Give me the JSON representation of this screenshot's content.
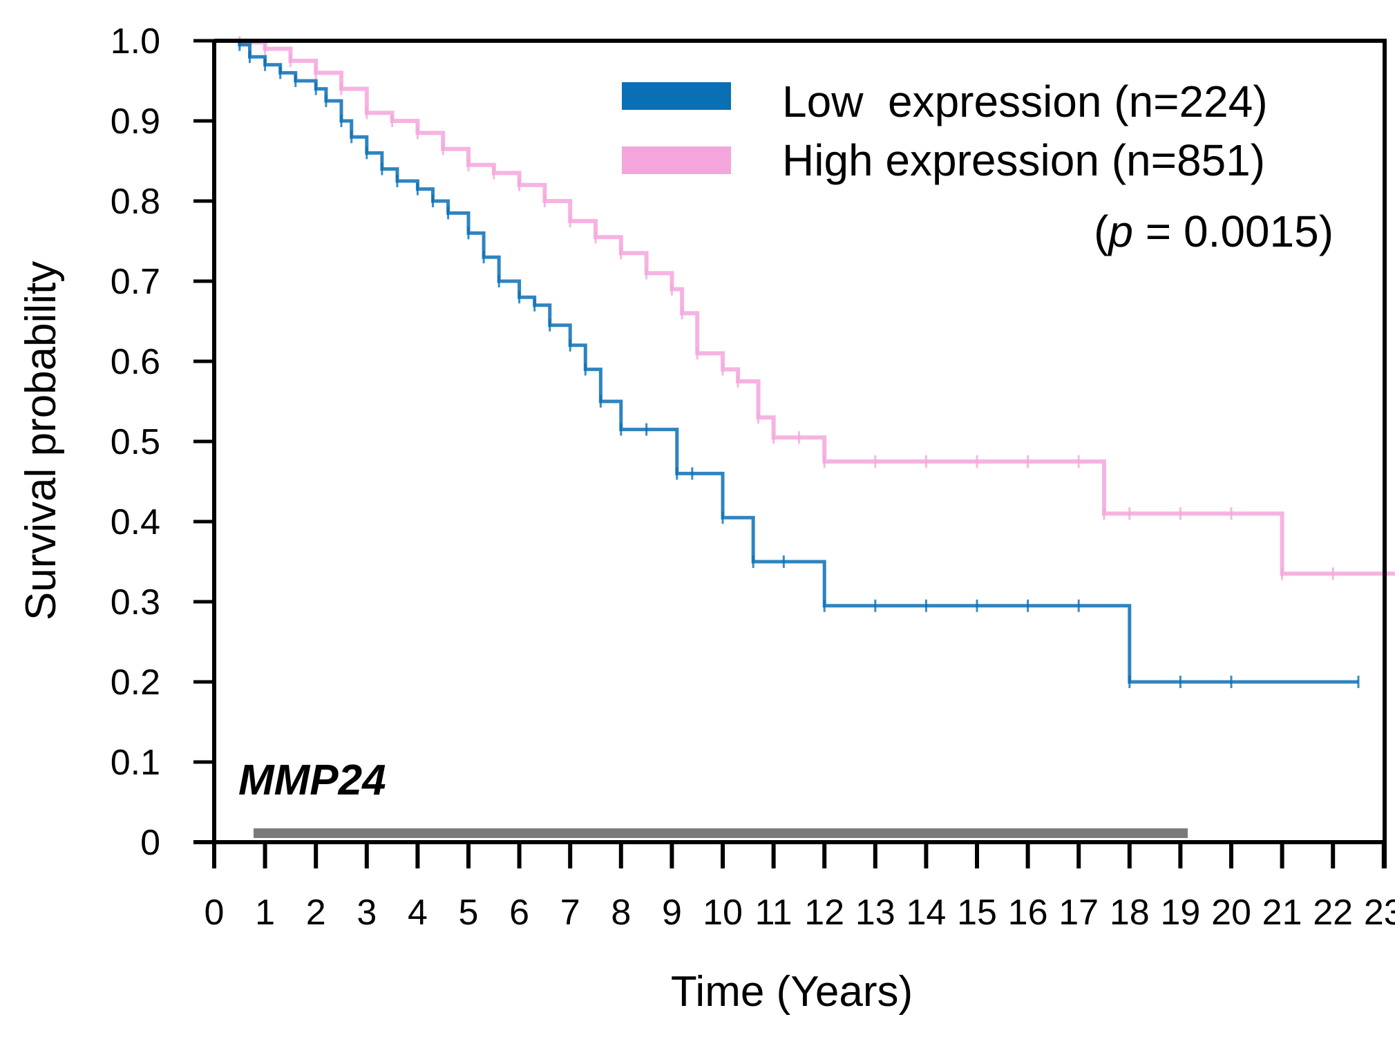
{
  "chart_data": {
    "type": "line",
    "subtype": "kaplan-meier",
    "title": "",
    "gene_label": "MMP24",
    "xlabel": "Time (Years)",
    "ylabel": "Survival probability",
    "xlim": [
      0,
      23.5
    ],
    "ylim": [
      0,
      1.0
    ],
    "x_ticks": [
      0,
      1,
      2,
      3,
      4,
      5,
      6,
      7,
      8,
      9,
      10,
      11,
      12,
      13,
      14,
      15,
      16,
      17,
      18,
      19,
      20,
      21,
      22,
      23
    ],
    "x_tick_labels": [
      "0",
      "1",
      "2",
      "3",
      "4",
      "5",
      "6",
      "7",
      "8",
      "9",
      "10",
      "11",
      "12",
      "13",
      "14",
      "15",
      "16",
      "17",
      "18",
      "19",
      "20",
      "21",
      "22",
      "23"
    ],
    "y_ticks": [
      0,
      0.1,
      0.2,
      0.3,
      0.4,
      0.5,
      0.6,
      0.7,
      0.8,
      0.9,
      1.0
    ],
    "y_tick_labels": [
      "0",
      "0.1",
      "0.2",
      "0.3",
      "0.4",
      "0.5",
      "0.6",
      "0.7",
      "0.8",
      "0.9",
      "1.0"
    ],
    "grid": false,
    "legend_position": "top-right",
    "annotation": {
      "p_prefix": "(",
      "p_symbol": "p",
      "p_value": " = 0.0015)"
    },
    "series": [
      {
        "name": "Low  expression (n=224)",
        "color": "#0a6fb5",
        "x": [
          0,
          0.5,
          0.7,
          1,
          1.3,
          1.6,
          2,
          2.2,
          2.5,
          2.7,
          3,
          3.3,
          3.6,
          4,
          4.3,
          4.6,
          5,
          5.3,
          5.6,
          6,
          6.3,
          6.6,
          7,
          7.3,
          7.6,
          8,
          8.5,
          9.1,
          9.4,
          10,
          10.6,
          11.2,
          12,
          13,
          14,
          15,
          16,
          17,
          18,
          19,
          20,
          22.5
        ],
        "y": [
          1.0,
          0.995,
          0.98,
          0.97,
          0.96,
          0.95,
          0.94,
          0.925,
          0.9,
          0.88,
          0.86,
          0.84,
          0.825,
          0.815,
          0.8,
          0.785,
          0.76,
          0.73,
          0.7,
          0.68,
          0.67,
          0.645,
          0.62,
          0.59,
          0.55,
          0.515,
          0.515,
          0.46,
          0.46,
          0.405,
          0.35,
          0.35,
          0.295,
          0.295,
          0.295,
          0.295,
          0.295,
          0.295,
          0.2,
          0.2,
          0.2,
          0.2
        ]
      },
      {
        "name": "High expression (n=851)",
        "color": "#f4a6dc",
        "x": [
          0,
          0.5,
          1,
          1.5,
          2,
          2.5,
          3,
          3.5,
          4,
          4.5,
          5,
          5.5,
          6,
          6.5,
          7,
          7.5,
          8,
          8.5,
          9,
          9.2,
          9.5,
          10,
          10.3,
          10.7,
          11,
          11.5,
          12,
          13,
          14,
          15,
          16,
          17,
          17.5,
          18,
          19,
          20,
          21,
          22,
          23.5
        ],
        "y": [
          1.0,
          0.998,
          0.99,
          0.975,
          0.96,
          0.94,
          0.91,
          0.9,
          0.885,
          0.865,
          0.845,
          0.835,
          0.82,
          0.8,
          0.775,
          0.755,
          0.735,
          0.71,
          0.69,
          0.66,
          0.61,
          0.59,
          0.575,
          0.53,
          0.505,
          0.505,
          0.475,
          0.475,
          0.475,
          0.475,
          0.475,
          0.475,
          0.41,
          0.41,
          0.41,
          0.41,
          0.335,
          0.335,
          0.335
        ]
      }
    ]
  }
}
